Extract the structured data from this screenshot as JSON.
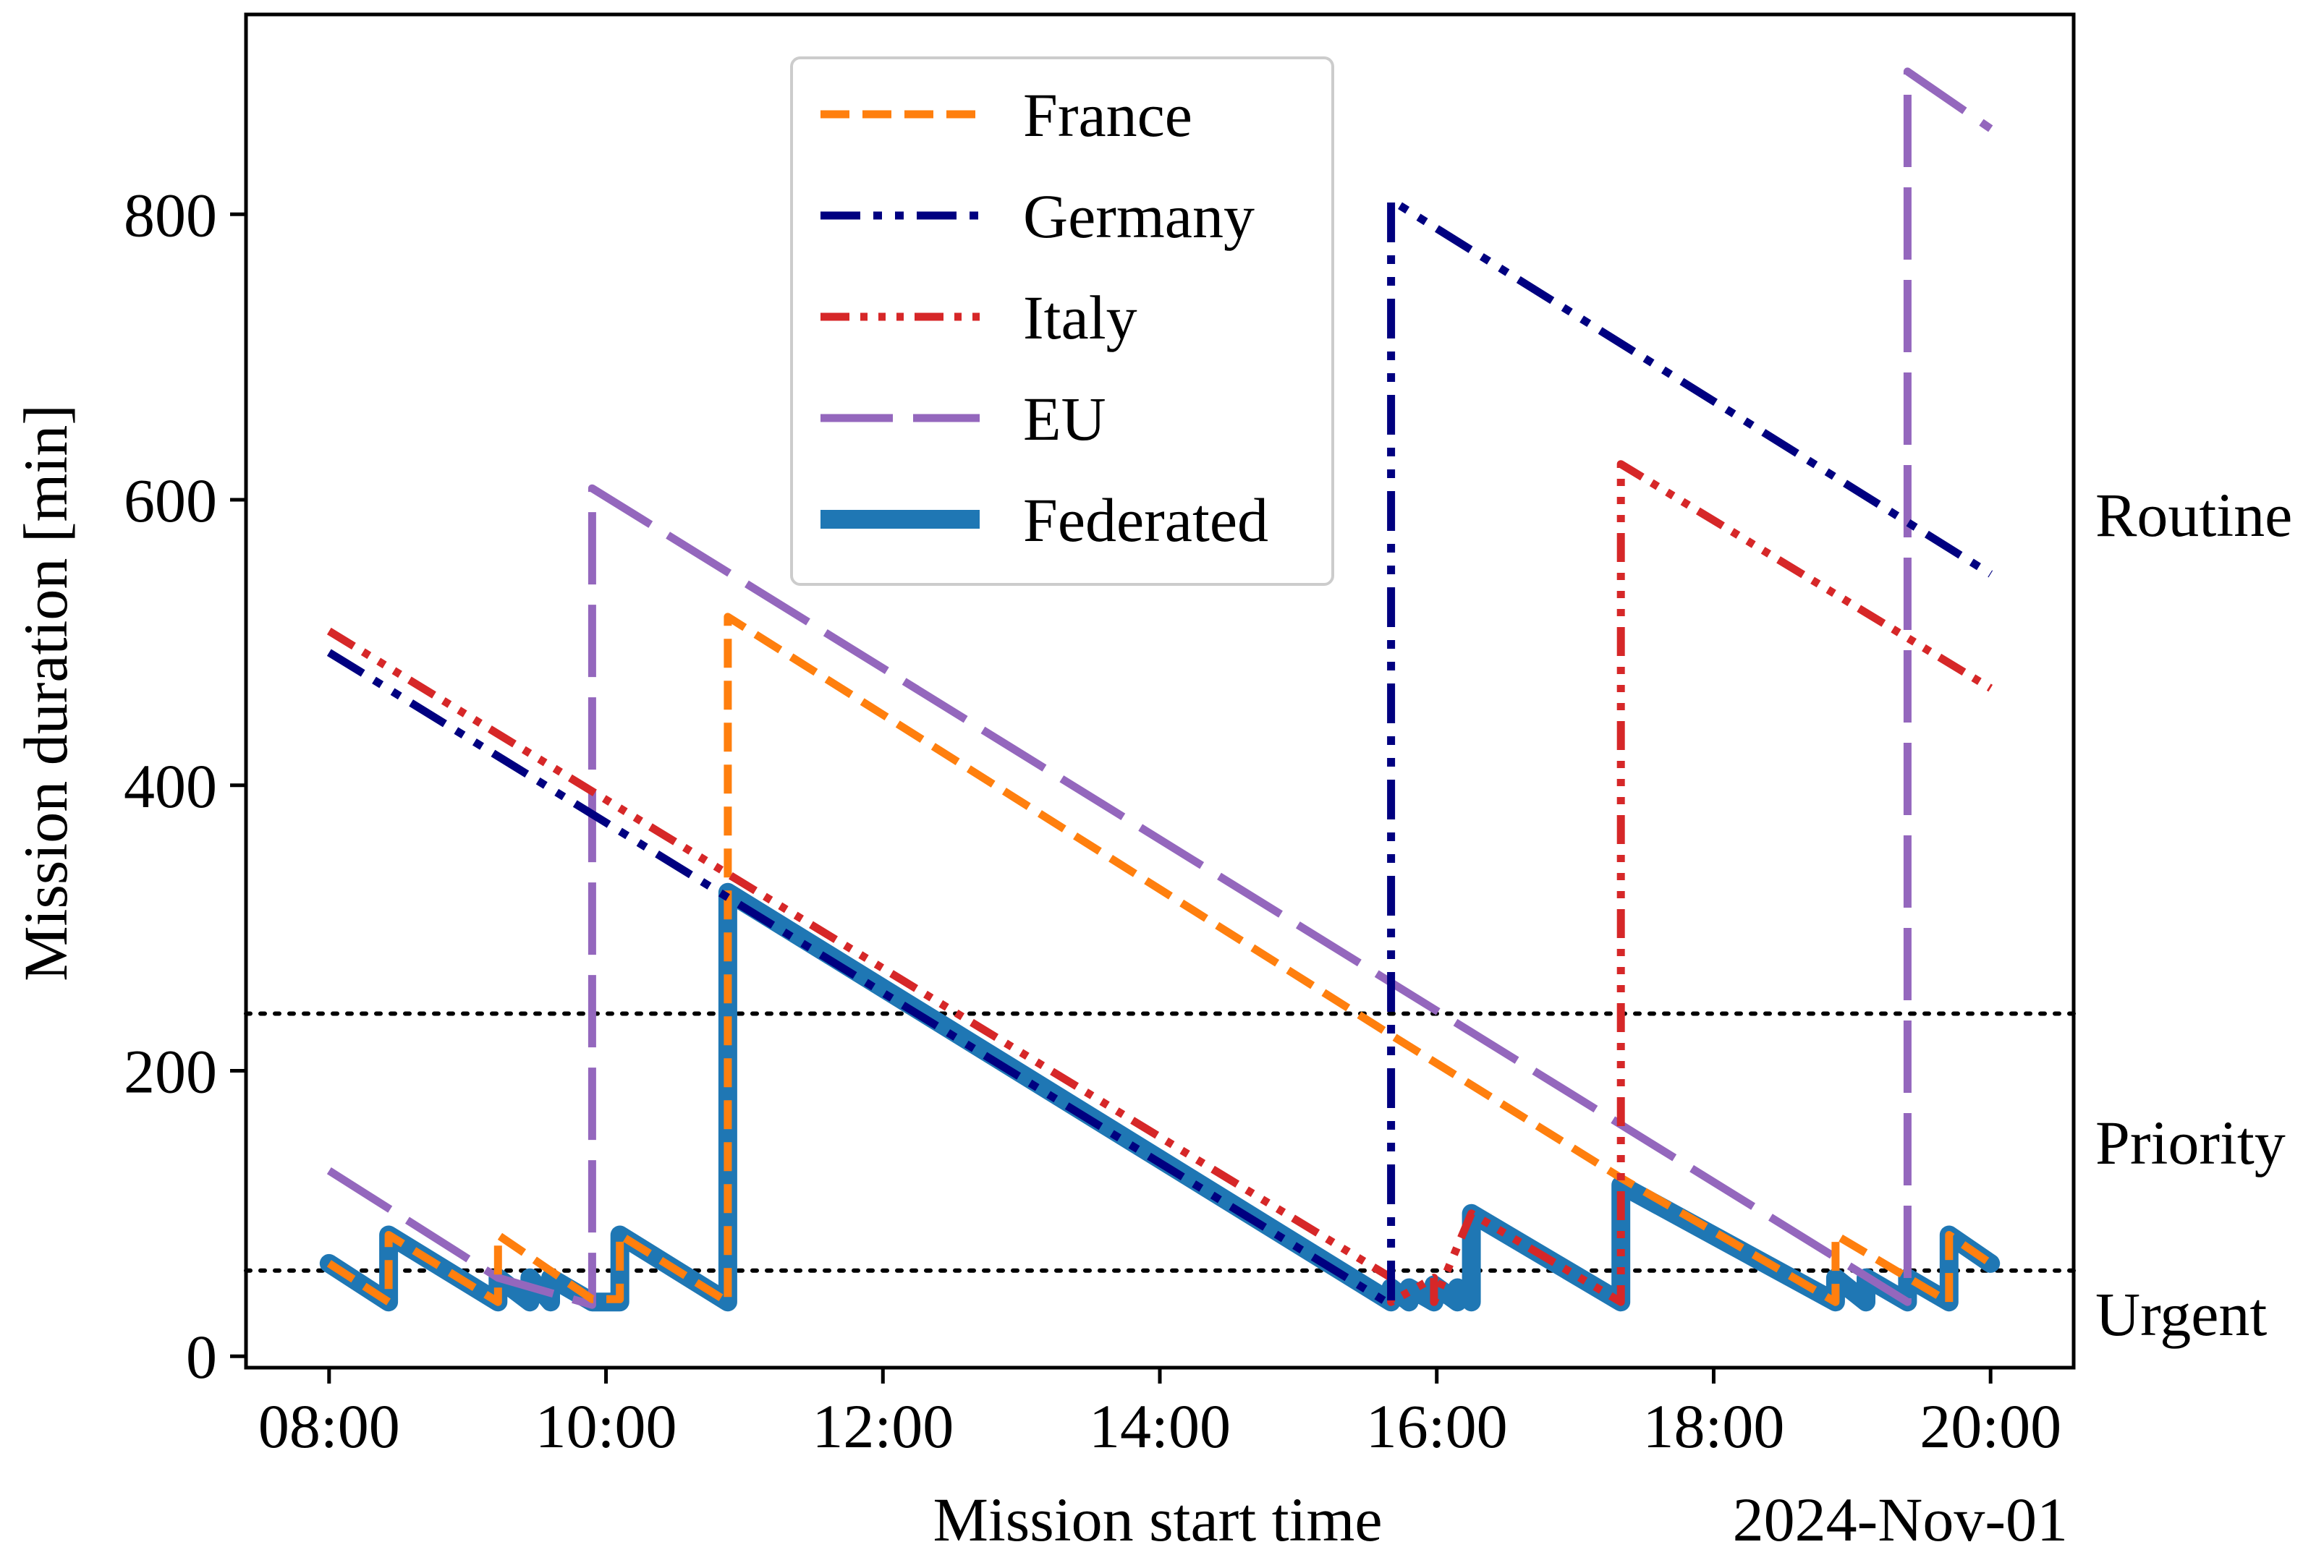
{
  "chart_data": {
    "type": "line",
    "title": "",
    "xlabel": "Mission start time",
    "ylabel": "Mission duration [min]",
    "date_label": "2024-Nov-01",
    "x_unit": "hours",
    "xlim": [
      7.4,
      20.6
    ],
    "ylim": [
      -8,
      940
    ],
    "x_ticks": [
      {
        "value": 8,
        "label": "08:00"
      },
      {
        "value": 10,
        "label": "10:00"
      },
      {
        "value": 12,
        "label": "12:00"
      },
      {
        "value": 14,
        "label": "14:00"
      },
      {
        "value": 16,
        "label": "16:00"
      },
      {
        "value": 18,
        "label": "18:00"
      },
      {
        "value": 20,
        "label": "20:00"
      }
    ],
    "y_ticks": [
      {
        "value": 0,
        "label": "0"
      },
      {
        "value": 200,
        "label": "200"
      },
      {
        "value": 400,
        "label": "400"
      },
      {
        "value": 600,
        "label": "600"
      },
      {
        "value": 800,
        "label": "800"
      }
    ],
    "thresholds": [
      {
        "value": 60,
        "style": "dotted"
      },
      {
        "value": 240,
        "style": "dotted"
      }
    ],
    "band_labels": [
      {
        "label": "Urgent",
        "value": 30
      },
      {
        "label": "Priority",
        "value": 150
      },
      {
        "label": "Routine",
        "value": 590
      }
    ],
    "legend_position": "upper-center",
    "series": [
      {
        "name": "Federated",
        "color": "#1f77b4",
        "style": "solid-thick",
        "points": [
          [
            8.0,
            65
          ],
          [
            8.43,
            38
          ],
          [
            8.43,
            85
          ],
          [
            9.22,
            38
          ],
          [
            9.22,
            55
          ],
          [
            9.45,
            38
          ],
          [
            9.45,
            55
          ],
          [
            9.6,
            38
          ],
          [
            9.6,
            55
          ],
          [
            9.9,
            38
          ],
          [
            10.1,
            38
          ],
          [
            10.1,
            85
          ],
          [
            10.88,
            38
          ],
          [
            10.88,
            325
          ],
          [
            15.67,
            38
          ],
          [
            15.67,
            48
          ],
          [
            15.8,
            38
          ],
          [
            15.8,
            48
          ],
          [
            15.98,
            38
          ],
          [
            15.98,
            50
          ],
          [
            16.15,
            38
          ],
          [
            16.15,
            48
          ],
          [
            16.25,
            38
          ],
          [
            16.25,
            100
          ],
          [
            17.33,
            38
          ],
          [
            17.33,
            120
          ],
          [
            18.88,
            38
          ],
          [
            18.88,
            55
          ],
          [
            19.1,
            38
          ],
          [
            19.1,
            55
          ],
          [
            19.4,
            38
          ],
          [
            19.4,
            55
          ],
          [
            19.7,
            38
          ],
          [
            19.7,
            85
          ],
          [
            20.0,
            65
          ]
        ]
      },
      {
        "name": "France",
        "color": "#ff7f0e",
        "style": "dashed",
        "points": [
          [
            8.0,
            65
          ],
          [
            8.43,
            38
          ],
          [
            8.43,
            85
          ],
          [
            9.22,
            38
          ],
          [
            9.22,
            85
          ],
          [
            9.9,
            40
          ],
          [
            10.1,
            40
          ],
          [
            10.1,
            85
          ],
          [
            10.88,
            38
          ],
          [
            10.88,
            518
          ],
          [
            15.67,
            225
          ],
          [
            17.33,
            125
          ],
          [
            18.88,
            38
          ],
          [
            18.88,
            85
          ],
          [
            19.7,
            38
          ],
          [
            19.7,
            85
          ],
          [
            20.0,
            65
          ]
        ]
      },
      {
        "name": "Germany",
        "color": "#000080",
        "style": "dash-dot-dot",
        "points": [
          [
            8.0,
            493
          ],
          [
            15.67,
            36
          ],
          [
            15.67,
            810
          ],
          [
            20.0,
            548
          ]
        ]
      },
      {
        "name": "Italy",
        "color": "#d62728",
        "style": "dash-dot-dot-dot",
        "points": [
          [
            8.0,
            508
          ],
          [
            15.67,
            55
          ],
          [
            15.67,
            38
          ],
          [
            15.98,
            55
          ],
          [
            15.98,
            38
          ],
          [
            16.25,
            100
          ],
          [
            17.33,
            38
          ],
          [
            17.33,
            625
          ],
          [
            20.0,
            468
          ]
        ]
      },
      {
        "name": "EU",
        "color": "#9467bd",
        "style": "long-dash",
        "points": [
          [
            8.0,
            130
          ],
          [
            9.22,
            55
          ],
          [
            9.9,
            36
          ],
          [
            9.9,
            608
          ],
          [
            19.4,
            38
          ],
          [
            19.4,
            900
          ],
          [
            20.0,
            860
          ]
        ]
      }
    ],
    "legend_order": [
      "France",
      "Germany",
      "Italy",
      "EU",
      "Federated"
    ]
  }
}
